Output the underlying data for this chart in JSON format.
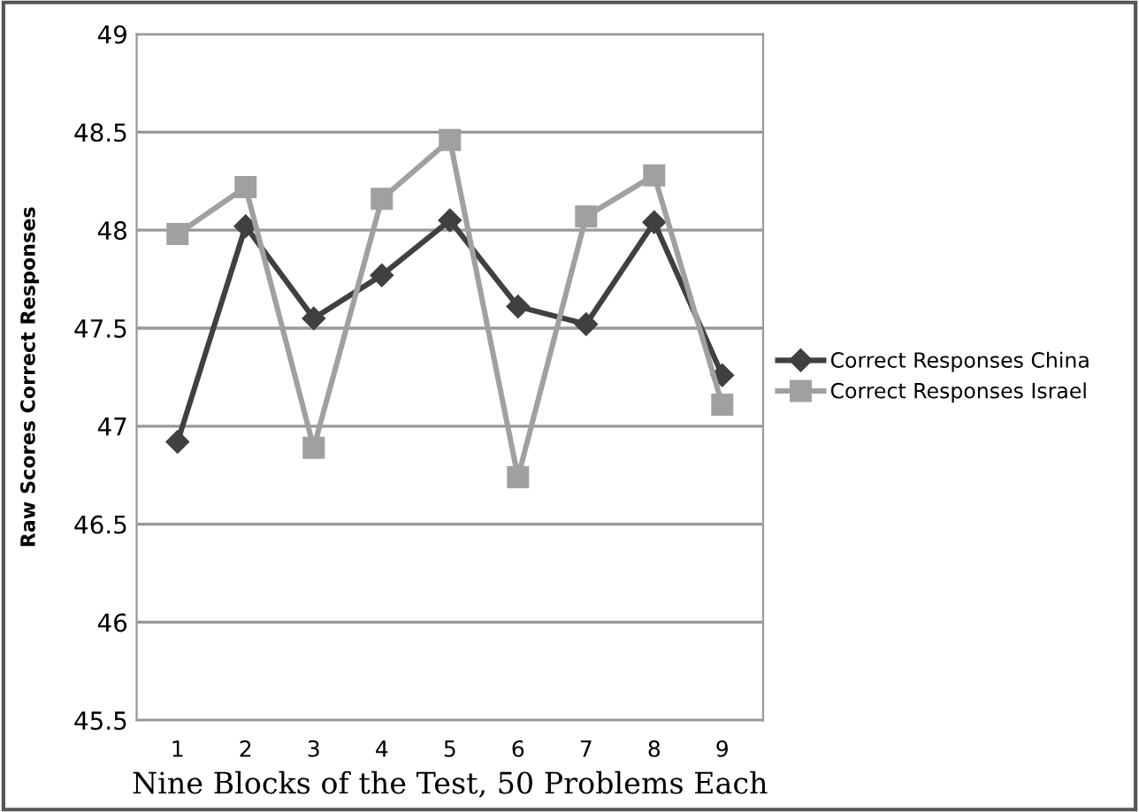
{
  "chart_data": {
    "type": "line",
    "xlabel": "Nine Blocks of the Test, 50 Problems Each",
    "ylabel": "Raw Scores Correct Responses",
    "categories": [
      "1",
      "2",
      "3",
      "4",
      "5",
      "6",
      "7",
      "8",
      "9"
    ],
    "series": [
      {
        "name": "Correct Responses China",
        "color": "#404040",
        "marker": "diamond",
        "values": [
          46.92,
          48.02,
          47.55,
          47.77,
          48.05,
          47.61,
          47.52,
          48.04,
          47.26
        ]
      },
      {
        "name": "Correct Responses Israel",
        "color": "#a0a0a0",
        "marker": "square",
        "values": [
          47.98,
          48.22,
          46.89,
          48.16,
          48.46,
          46.74,
          48.07,
          48.28,
          47.11
        ]
      }
    ],
    "ylim": [
      45.5,
      49
    ],
    "yticks": [
      45.5,
      46,
      46.5,
      47,
      47.5,
      48,
      48.5,
      49
    ],
    "grid": "y",
    "legend": "right",
    "line_style": "solid"
  }
}
